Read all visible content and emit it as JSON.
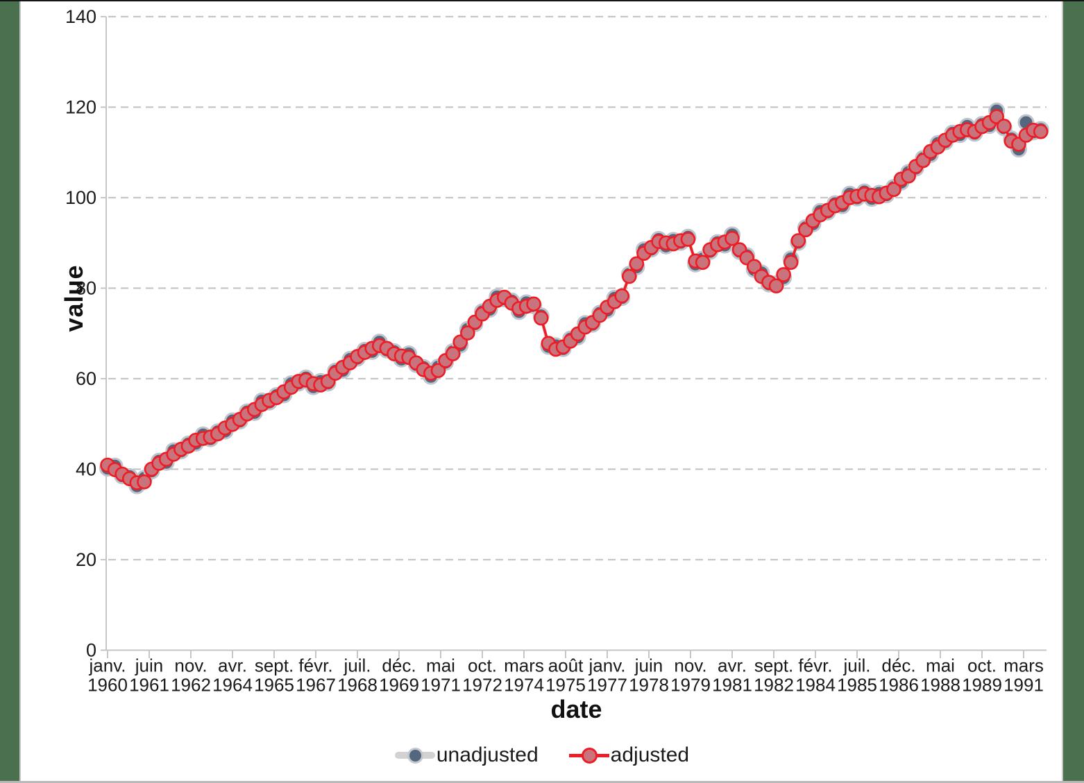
{
  "chart_data": {
    "type": "line",
    "title": "",
    "xlabel": "date",
    "ylabel": "value",
    "ylim": [
      0,
      140
    ],
    "y_ticks": [
      0,
      20,
      40,
      60,
      80,
      100,
      120,
      140
    ],
    "grid": "horizontal-dashed",
    "legend_position": "bottom-center",
    "frequency": "quarterly",
    "months_between_points": 3,
    "months_between_ticks": 17,
    "x_tick_labels": [
      {
        "month": "janv.",
        "year": "1960"
      },
      {
        "month": "juin",
        "year": "1961"
      },
      {
        "month": "nov.",
        "year": "1962"
      },
      {
        "month": "avr.",
        "year": "1964"
      },
      {
        "month": "sept.",
        "year": "1965"
      },
      {
        "month": "févr.",
        "year": "1967"
      },
      {
        "month": "juil.",
        "year": "1968"
      },
      {
        "month": "déc.",
        "year": "1969"
      },
      {
        "month": "mai",
        "year": "1971"
      },
      {
        "month": "oct.",
        "year": "1972"
      },
      {
        "month": "mars",
        "year": "1974"
      },
      {
        "month": "août",
        "year": "1975"
      },
      {
        "month": "janv.",
        "year": "1977"
      },
      {
        "month": "juin",
        "year": "1978"
      },
      {
        "month": "nov.",
        "year": "1979"
      },
      {
        "month": "avr.",
        "year": "1981"
      },
      {
        "month": "sept.",
        "year": "1982"
      },
      {
        "month": "févr.",
        "year": "1984"
      },
      {
        "month": "juil.",
        "year": "1985"
      },
      {
        "month": "déc.",
        "year": "1986"
      },
      {
        "month": "mai",
        "year": "1988"
      },
      {
        "month": "oct.",
        "year": "1989"
      },
      {
        "month": "mars",
        "year": "1991"
      }
    ],
    "x_quarters": [
      "1960-Q1",
      "1960-Q2",
      "1960-Q3",
      "1960-Q4",
      "1961-Q1",
      "1961-Q2",
      "1961-Q3",
      "1961-Q4",
      "1962-Q1",
      "1962-Q2",
      "1962-Q3",
      "1962-Q4",
      "1963-Q1",
      "1963-Q2",
      "1963-Q3",
      "1963-Q4",
      "1964-Q1",
      "1964-Q2",
      "1964-Q3",
      "1964-Q4",
      "1965-Q1",
      "1965-Q2",
      "1965-Q3",
      "1965-Q4",
      "1966-Q1",
      "1966-Q2",
      "1966-Q3",
      "1966-Q4",
      "1967-Q1",
      "1967-Q2",
      "1967-Q3",
      "1967-Q4",
      "1968-Q1",
      "1968-Q2",
      "1968-Q3",
      "1968-Q4",
      "1969-Q1",
      "1969-Q2",
      "1969-Q3",
      "1969-Q4",
      "1970-Q1",
      "1970-Q2",
      "1970-Q3",
      "1970-Q4",
      "1971-Q1",
      "1971-Q2",
      "1971-Q3",
      "1971-Q4",
      "1972-Q1",
      "1972-Q2",
      "1972-Q3",
      "1972-Q4",
      "1973-Q1",
      "1973-Q2",
      "1973-Q3",
      "1973-Q4",
      "1974-Q1",
      "1974-Q2",
      "1974-Q3",
      "1974-Q4",
      "1975-Q1",
      "1975-Q2",
      "1975-Q3",
      "1975-Q4",
      "1976-Q1",
      "1976-Q2",
      "1976-Q3",
      "1976-Q4",
      "1977-Q1",
      "1977-Q2",
      "1977-Q3",
      "1977-Q4",
      "1978-Q1",
      "1978-Q2",
      "1978-Q3",
      "1978-Q4",
      "1979-Q1",
      "1979-Q2",
      "1979-Q3",
      "1979-Q4",
      "1980-Q1",
      "1980-Q2",
      "1980-Q3",
      "1980-Q4",
      "1981-Q1",
      "1981-Q2",
      "1981-Q3",
      "1981-Q4",
      "1982-Q1",
      "1982-Q2",
      "1982-Q3",
      "1982-Q4",
      "1983-Q1",
      "1983-Q2",
      "1983-Q3",
      "1983-Q4",
      "1984-Q1",
      "1984-Q2",
      "1984-Q3",
      "1984-Q4",
      "1985-Q1",
      "1985-Q2",
      "1985-Q3",
      "1985-Q4",
      "1986-Q1",
      "1986-Q2",
      "1986-Q3",
      "1986-Q4",
      "1987-Q1",
      "1987-Q2",
      "1987-Q3",
      "1987-Q4",
      "1988-Q1",
      "1988-Q2",
      "1988-Q3",
      "1988-Q4",
      "1989-Q1",
      "1989-Q2",
      "1989-Q3",
      "1989-Q4",
      "1990-Q1",
      "1990-Q2",
      "1990-Q3",
      "1990-Q4",
      "1991-Q1",
      "1991-Q2",
      "1991-Q3",
      "1991-Q4"
    ],
    "series": [
      {
        "name": "unadjusted",
        "line_color": "#cfcfcf",
        "fill_color": "#55677e",
        "edge_color": "#bfc5cc",
        "line_width": 5,
        "marker_radius": 10.5,
        "edge_width": 3,
        "values": [
          40.2,
          40.7,
          38.5,
          38.4,
          36.3,
          38.0,
          39.6,
          41.8,
          41.5,
          44.1,
          44.0,
          45.6,
          45.7,
          47.6,
          46.7,
          48.3,
          48.4,
          50.7,
          50.6,
          52.7,
          52.5,
          55.1,
          54.8,
          56.3,
          56.4,
          58.9,
          59.0,
          60.2,
          58.2,
          59.4,
          59.0,
          61.7,
          61.8,
          64.3,
          64.5,
          66.3,
          66.0,
          68.1,
          66.3,
          66.0,
          64.3,
          65.5,
          63.1,
          62.5,
          60.5,
          62.6,
          63.6,
          66.0,
          67.4,
          70.9,
          72.1,
          74.8,
          75.3,
          78.1,
          77.6,
          77.2,
          74.8,
          76.8,
          76.1,
          73.9,
          67.1,
          67.3,
          66.6,
          68.8,
          69.2,
          72.2,
          72.0,
          74.5,
          75.1,
          77.8,
          77.9,
          83.1,
          84.7,
          88.5,
          88.6,
          90.8,
          89.3,
          90.6,
          90.1,
          91.3,
          85.3,
          86.5,
          88.1,
          90.1,
          89.5,
          91.8,
          88.1,
          87.2,
          84.1,
          83.4,
          80.9,
          81.0,
          82.3,
          86.5,
          90.1,
          93.4,
          94.2,
          97.0,
          96.8,
          98.7,
          98.2,
          100.8,
          99.9,
          101.3,
          99.8,
          101.0,
          100.6,
          102.3,
          103.4,
          105.6,
          106.5,
          108.7,
          109.5,
          112.0,
          112.3,
          114.3,
          113.9,
          115.8,
          114.2,
          116.2,
          115.9,
          119.2,
          115.4,
          113.0,
          110.7,
          116.6,
          114.5,
          115.1
        ]
      },
      {
        "name": "adjusted",
        "line_color": "#ed1c25",
        "fill_color": "#c9737d",
        "edge_color": "#ed1c25",
        "line_width": 3.6,
        "marker_radius": 9.5,
        "edge_width": 2.6,
        "values": [
          40.9,
          39.9,
          38.9,
          37.9,
          37.0,
          37.2,
          40.0,
          41.3,
          42.2,
          43.3,
          44.4,
          45.1,
          46.4,
          46.8,
          47.1,
          47.8,
          49.1,
          49.9,
          51.0,
          52.2,
          53.2,
          54.3,
          55.2,
          55.8,
          57.1,
          58.1,
          59.4,
          59.7,
          58.9,
          58.6,
          59.4,
          61.2,
          62.5,
          63.5,
          64.9,
          65.8,
          66.7,
          67.3,
          66.7,
          65.5,
          65.0,
          64.7,
          63.5,
          62.0,
          61.2,
          61.8,
          64.0,
          65.5,
          68.1,
          70.1,
          72.5,
          74.3,
          76.0,
          77.3,
          78.0,
          76.7,
          75.5,
          76.0,
          76.5,
          73.4,
          67.8,
          66.5,
          67.0,
          68.3,
          69.9,
          71.4,
          72.4,
          74.0,
          75.8,
          77.0,
          78.3,
          82.6,
          85.4,
          87.7,
          89.0,
          90.3,
          90.0,
          89.8,
          90.5,
          90.8,
          86.0,
          85.7,
          88.5,
          89.6,
          90.2,
          91.0,
          88.5,
          86.7,
          84.8,
          82.6,
          81.3,
          80.5,
          83.0,
          85.7,
          90.5,
          92.9,
          94.9,
          96.2,
          97.2,
          98.2,
          98.9,
          100.0,
          100.3,
          100.8,
          100.5,
          100.2,
          101.0,
          101.8,
          104.1,
          104.8,
          106.9,
          108.2,
          110.2,
          111.2,
          112.7,
          113.8,
          114.6,
          115.0,
          114.6,
          115.7,
          116.6,
          117.9,
          115.8,
          112.5,
          111.8,
          113.8,
          114.9,
          114.6
        ]
      }
    ],
    "colors": {
      "grid": "#c6c6c6",
      "axis": "#c6c6c6",
      "tick_text": "#1a1a1a",
      "frame_green": "#4a7050",
      "top_edge": "#161616",
      "bottom_edge": "#b9b9b9"
    }
  },
  "legend": {
    "items": [
      {
        "label": "unadjusted"
      },
      {
        "label": "adjusted"
      }
    ]
  }
}
